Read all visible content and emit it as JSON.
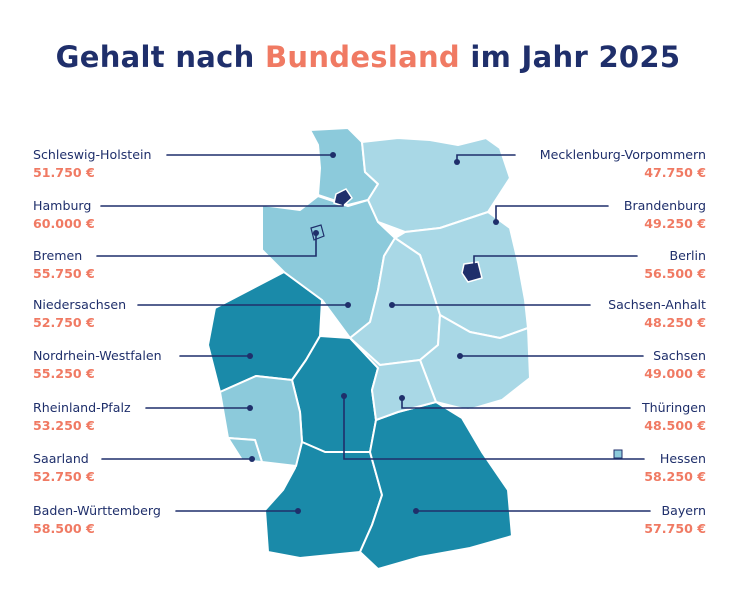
{
  "title": {
    "before": "Gehalt nach ",
    "highlight": "Bundesland",
    "after": " im Jahr 2025"
  },
  "colors": {
    "title": "#1f2f6b",
    "accent": "#f07a63",
    "light_region": "#a9d8e6",
    "mid_region": "#8ccadb",
    "dark_region": "#1a8aa9",
    "leader_line": "#1f2f6b"
  },
  "states_left": [
    {
      "name": "Schleswig-Holstein",
      "salary": "51.750 €"
    },
    {
      "name": "Hamburg",
      "salary": "60.000 €"
    },
    {
      "name": "Bremen",
      "salary": "55.750 €"
    },
    {
      "name": "Niedersachsen",
      "salary": "52.750 €"
    },
    {
      "name": "Nordrhein-Westfalen",
      "salary": "55.250 €"
    },
    {
      "name": "Rheinland-Pfalz",
      "salary": "53.250 €"
    },
    {
      "name": "Saarland",
      "salary": "52.750 €"
    },
    {
      "name": "Baden-Württemberg",
      "salary": "58.500 €"
    }
  ],
  "states_right": [
    {
      "name": "Mecklenburg-Vorpommern",
      "salary": "47.750 €"
    },
    {
      "name": "Brandenburg",
      "salary": "49.250 €"
    },
    {
      "name": "Berlin",
      "salary": "56.500 €"
    },
    {
      "name": "Sachsen-Anhalt",
      "salary": "48.250 €"
    },
    {
      "name": "Sachsen",
      "salary": "49.000 €"
    },
    {
      "name": "Thüringen",
      "salary": "48.500 €"
    },
    {
      "name": "Hessen",
      "salary": "58.250 €"
    },
    {
      "name": "Bayern",
      "salary": "57.750 €"
    }
  ]
}
